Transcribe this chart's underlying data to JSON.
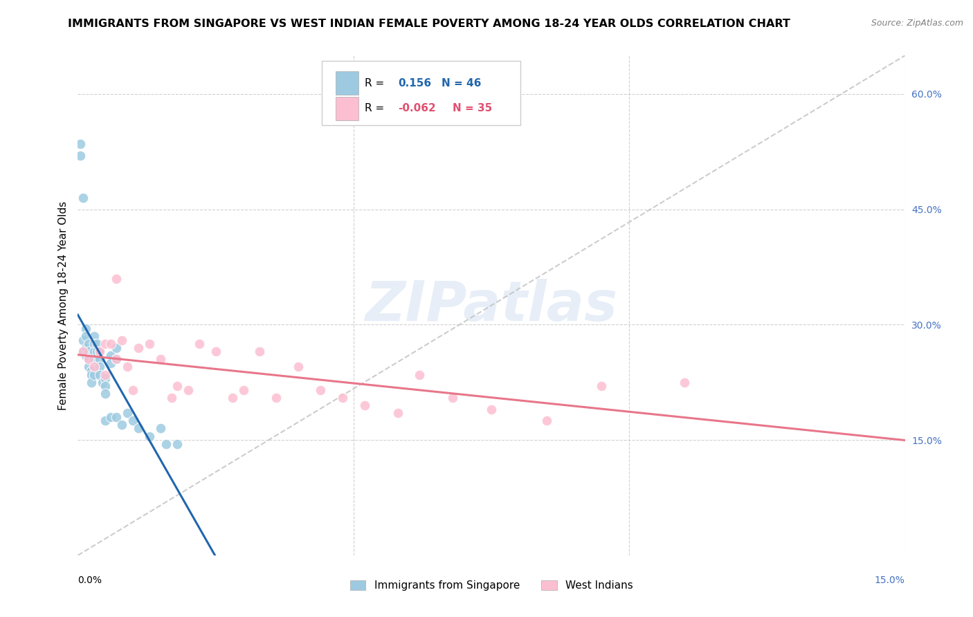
{
  "title": "IMMIGRANTS FROM SINGAPORE VS WEST INDIAN FEMALE POVERTY AMONG 18-24 YEAR OLDS CORRELATION CHART",
  "source": "Source: ZipAtlas.com",
  "ylabel": "Female Poverty Among 18-24 Year Olds",
  "ylabel_right_ticks": [
    "60.0%",
    "45.0%",
    "30.0%",
    "15.0%"
  ],
  "ylabel_right_vals": [
    0.6,
    0.45,
    0.3,
    0.15
  ],
  "watermark_text": "ZIPatlas",
  "blue_color": "#9ecae1",
  "pink_color": "#fcbfd2",
  "blue_line_color": "#2166ac",
  "pink_line_color": "#e8768a",
  "dashed_line_color": "#c0c0c0",
  "xlim": [
    0.0,
    0.15
  ],
  "ylim": [
    0.0,
    0.65
  ],
  "sg_R": 0.156,
  "sg_N": 46,
  "wi_R": -0.062,
  "wi_N": 35,
  "singapore_x": [
    0.0005,
    0.0005,
    0.001,
    0.001,
    0.001,
    0.0015,
    0.0015,
    0.0015,
    0.0015,
    0.002,
    0.002,
    0.002,
    0.002,
    0.0025,
    0.0025,
    0.0025,
    0.003,
    0.003,
    0.003,
    0.003,
    0.003,
    0.0035,
    0.0035,
    0.004,
    0.004,
    0.004,
    0.004,
    0.0045,
    0.005,
    0.005,
    0.005,
    0.005,
    0.006,
    0.006,
    0.006,
    0.007,
    0.007,
    0.007,
    0.008,
    0.009,
    0.01,
    0.011,
    0.013,
    0.015,
    0.016,
    0.018
  ],
  "singapore_y": [
    0.535,
    0.52,
    0.465,
    0.28,
    0.265,
    0.295,
    0.285,
    0.27,
    0.26,
    0.275,
    0.265,
    0.255,
    0.245,
    0.24,
    0.235,
    0.225,
    0.285,
    0.275,
    0.265,
    0.255,
    0.235,
    0.275,
    0.265,
    0.265,
    0.255,
    0.245,
    0.235,
    0.225,
    0.23,
    0.22,
    0.21,
    0.175,
    0.26,
    0.25,
    0.18,
    0.27,
    0.255,
    0.18,
    0.17,
    0.185,
    0.175,
    0.165,
    0.155,
    0.165,
    0.145,
    0.145
  ],
  "westindian_x": [
    0.001,
    0.002,
    0.003,
    0.004,
    0.005,
    0.005,
    0.006,
    0.007,
    0.007,
    0.008,
    0.009,
    0.01,
    0.011,
    0.013,
    0.015,
    0.017,
    0.018,
    0.02,
    0.022,
    0.025,
    0.028,
    0.03,
    0.033,
    0.036,
    0.04,
    0.044,
    0.048,
    0.052,
    0.058,
    0.062,
    0.068,
    0.075,
    0.085,
    0.095,
    0.11
  ],
  "westindian_y": [
    0.265,
    0.255,
    0.245,
    0.265,
    0.275,
    0.235,
    0.275,
    0.36,
    0.255,
    0.28,
    0.245,
    0.215,
    0.27,
    0.275,
    0.255,
    0.205,
    0.22,
    0.215,
    0.275,
    0.265,
    0.205,
    0.215,
    0.265,
    0.205,
    0.245,
    0.215,
    0.205,
    0.195,
    0.185,
    0.235,
    0.205,
    0.19,
    0.175,
    0.22,
    0.225
  ]
}
